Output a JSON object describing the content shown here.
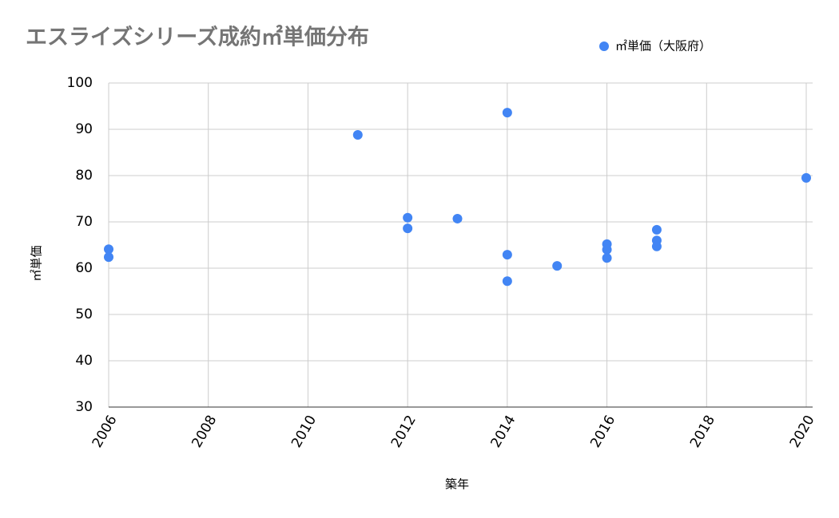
{
  "chart_data": {
    "type": "scatter",
    "title": "エスライズシリーズ成約㎡単価分布",
    "x_label": "築年",
    "y_label": "㎡単価",
    "series": [
      {
        "name": "㎡単価（大阪府）",
        "color": "#4285f4",
        "x": [
          2006,
          2006,
          2011,
          2012,
          2012,
          2013,
          2014,
          2014,
          2014,
          2015,
          2016,
          2016,
          2016,
          2017,
          2017,
          2017,
          2020
        ],
        "values": [
          64.1,
          62.4,
          88.8,
          70.9,
          68.6,
          70.7,
          93.6,
          62.9,
          57.2,
          60.5,
          65.2,
          64.0,
          62.2,
          68.3,
          66.0,
          64.7,
          79.5
        ]
      }
    ],
    "xlim": [
      2006,
      2020
    ],
    "xticks": [
      2006,
      2008,
      2010,
      2012,
      2014,
      2016,
      2018,
      2020
    ],
    "ylim": [
      30,
      100
    ],
    "yticks": [
      30,
      40,
      50,
      60,
      70,
      80,
      90,
      100
    ],
    "grid": true,
    "legend": "top-right"
  }
}
